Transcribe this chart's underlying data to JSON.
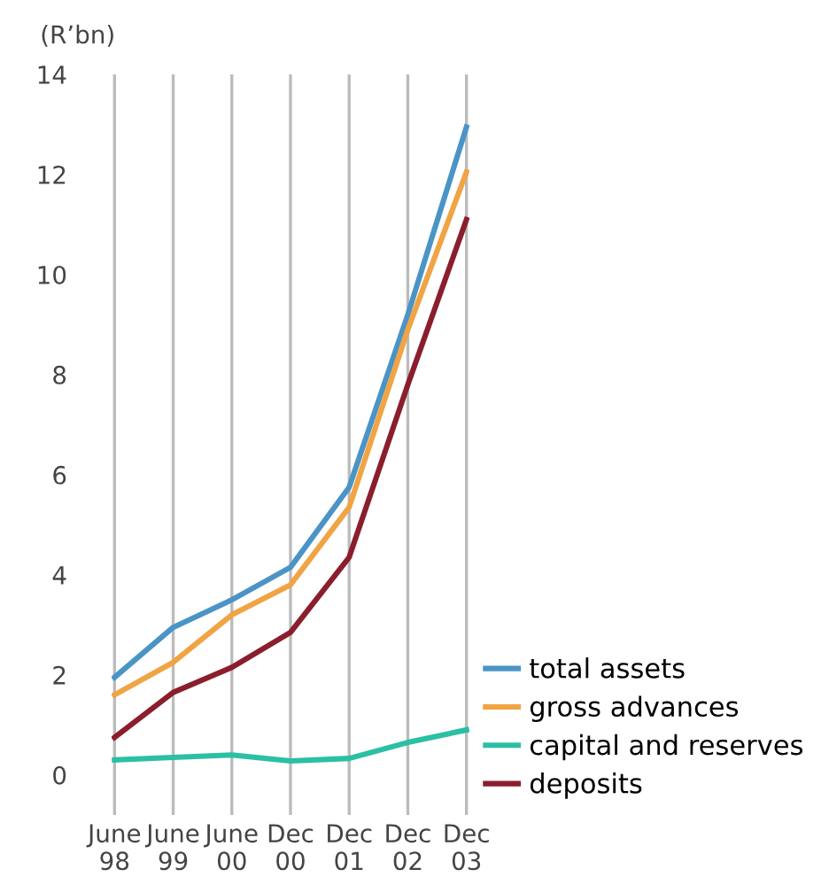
{
  "chart_data": {
    "type": "line",
    "ylabel": "(R’bn)",
    "categories": [
      "June\n98",
      "June\n99",
      "June\n00",
      "Dec\n00",
      "Dec\n01",
      "Dec\n02",
      "Dec\n03"
    ],
    "series": [
      {
        "name": "total assets",
        "color": "#4a94c6",
        "values": [
          1.95,
          2.95,
          3.5,
          4.15,
          5.75,
          9.2,
          12.95
        ]
      },
      {
        "name": "gross advances",
        "color": "#f0a444",
        "values": [
          1.6,
          2.25,
          3.2,
          3.8,
          5.35,
          8.9,
          12.05
        ]
      },
      {
        "name": "capital and reserves",
        "color": "#2bbfa4",
        "values": [
          0.3,
          0.35,
          0.4,
          0.28,
          0.33,
          0.65,
          0.9
        ]
      },
      {
        "name": "deposits",
        "color": "#8b1e2c",
        "values": [
          0.75,
          1.65,
          2.15,
          2.85,
          4.35,
          7.8,
          11.1
        ]
      }
    ],
    "ylim": [
      -0.8,
      14
    ],
    "yticks": [
      0,
      2,
      4,
      6,
      8,
      10,
      12,
      14
    ],
    "grid": "x",
    "legend": "bottom right",
    "marker": "none",
    "line_style": "solid"
  }
}
